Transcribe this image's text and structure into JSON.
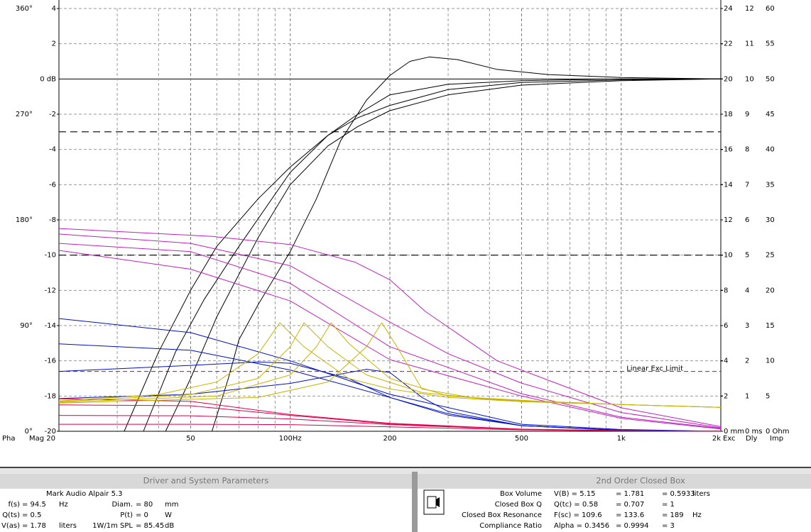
{
  "graph": {
    "xlim": [
      20,
      2000
    ],
    "log_x": true,
    "xticks": [
      {
        "value": 20,
        "label": "Mag 20"
      },
      50,
      {
        "value": 100,
        "label": "100Hz"
      },
      200,
      500,
      {
        "value": 1000,
        "label": "1k"
      },
      {
        "value": 2000,
        "label": "2k"
      }
    ],
    "minor_xticks": [
      30,
      40,
      60,
      70,
      80,
      90,
      300,
      400,
      600,
      700,
      800,
      900
    ],
    "ylim": [
      -20,
      4
    ],
    "yticks": [
      4,
      2,
      {
        "value": 0,
        "label": "0 dB"
      },
      -2,
      -4,
      -6,
      -8,
      -10,
      -12,
      -14,
      -16,
      -18,
      -20
    ],
    "grid": true,
    "phase_axis": {
      "label": "Pha",
      "color": "#c000c0",
      "lim": [
        0,
        360
      ],
      "ticks": [
        {
          "value": 360,
          "label": "360°"
        },
        {
          "value": 270,
          "label": "270°"
        },
        {
          "value": 180,
          "label": "180°"
        },
        {
          "value": 90,
          "label": "90°"
        },
        {
          "value": 0,
          "label": "0°"
        }
      ]
    },
    "exc_axis": {
      "label": "Exc",
      "color": "#c0007a",
      "lim": [
        0,
        24
      ],
      "ticks": [
        24,
        22,
        20,
        18,
        16,
        14,
        12,
        10,
        8,
        6,
        4,
        2,
        {
          "value": 0,
          "label": "0 mm"
        }
      ]
    },
    "delay_axis": {
      "label": "Dly",
      "color": "#0010c0",
      "lim": [
        0,
        12
      ],
      "ticks": [
        12,
        11,
        10,
        9,
        8,
        7,
        6,
        5,
        4,
        3,
        2,
        1,
        {
          "value": 0,
          "label": "0 ms"
        }
      ]
    },
    "imp_axis": {
      "label": "Imp",
      "color": "#b8a800",
      "lim": [
        0,
        60
      ],
      "ticks": [
        60,
        55,
        50,
        45,
        40,
        35,
        30,
        25,
        20,
        15,
        10,
        5,
        {
          "value": 0,
          "label": "0 Ohm"
        }
      ]
    },
    "reference_lines": [
      -3,
      -10
    ],
    "exc_limit": {
      "value": 3.4,
      "label": "Linear Exc Limit",
      "color": "#c0004a"
    },
    "series": [
      {
        "axis": "mag",
        "color": "#000000",
        "x": [
          58,
          65,
          70,
          80,
          100,
          120,
          142,
          170,
          200,
          230,
          263,
          320,
          420,
          600,
          1000,
          2000
        ],
        "values": [
          -20,
          -17,
          -14.8,
          -12.8,
          -9.8,
          -6.8,
          -3.5,
          -1.2,
          0.2,
          1,
          1.25,
          1.1,
          0.55,
          0.25,
          0.08,
          0
        ]
      },
      {
        "axis": "mag",
        "color": "#000000",
        "x": [
          31.5,
          40,
          50,
          60,
          80,
          100,
          130,
          160,
          200,
          300,
          500,
          1000,
          2000
        ],
        "values": [
          -20,
          -15.5,
          -12,
          -9.5,
          -6.8,
          -5,
          -3.2,
          -2,
          -0.9,
          -0.3,
          -0.1,
          0,
          0
        ]
      },
      {
        "axis": "mag",
        "color": "#000000",
        "x": [
          36,
          45,
          55,
          70,
          100,
          130,
          160,
          200,
          300,
          500,
          1000,
          2000
        ],
        "values": [
          -20,
          -15.5,
          -12.5,
          -9.5,
          -5.3,
          -3.2,
          -2.2,
          -1.5,
          -0.6,
          -0.2,
          -0.05,
          0
        ]
      },
      {
        "axis": "mag",
        "color": "#000000",
        "x": [
          42,
          50,
          60,
          80,
          100,
          130,
          160,
          200,
          300,
          500,
          1000,
          2000
        ],
        "values": [
          -20,
          -17,
          -13.5,
          -9,
          -6,
          -3.8,
          -2.7,
          -1.8,
          -0.9,
          -0.35,
          -0.1,
          0
        ]
      },
      {
        "axis": "phase",
        "color": "#c020c0",
        "x": [
          20,
          58,
          100,
          157,
          200,
          256,
          422,
          1000,
          2000
        ],
        "values": [
          172.7,
          166,
          159,
          144,
          129,
          102,
          60,
          20,
          4
        ]
      },
      {
        "axis": "phase",
        "color": "#c020c0",
        "x": [
          20,
          50,
          100,
          200,
          300,
          500,
          1000,
          2000
        ],
        "values": [
          168,
          160,
          141,
          93,
          66,
          41,
          16,
          3
        ]
      },
      {
        "axis": "phase",
        "color": "#c020c0",
        "x": [
          20,
          50,
          100,
          200,
          500,
          1000,
          2000
        ],
        "values": [
          160,
          153,
          126,
          72,
          32,
          12,
          2.5
        ]
      },
      {
        "axis": "phase",
        "color": "#c020c0",
        "x": [
          20,
          50,
          100,
          200,
          500,
          1000,
          2000
        ],
        "values": [
          154,
          138,
          111,
          61,
          30,
          11,
          2
        ]
      },
      {
        "axis": "delay",
        "color": "#0010c0",
        "x": [
          20,
          50,
          100,
          200,
          500,
          1000,
          2000
        ],
        "values": [
          3.2,
          2.8,
          2,
          1.05,
          0.2,
          0.05,
          0
        ]
      },
      {
        "axis": "delay",
        "color": "#0010c0",
        "x": [
          20,
          50,
          100,
          200,
          300,
          500,
          1000,
          2000
        ],
        "values": [
          2.48,
          2.3,
          1.74,
          0.96,
          0.46,
          0.16,
          0.03,
          0
        ]
      },
      {
        "axis": "delay",
        "color": "#0010c0",
        "x": [
          20,
          50,
          80,
          100,
          150,
          200,
          300,
          500,
          1000,
          2000
        ],
        "values": [
          1.7,
          1.87,
          1.97,
          1.93,
          1.5,
          0.96,
          0.5,
          0.16,
          0.02,
          0
        ]
      },
      {
        "axis": "delay",
        "color": "#0010c0",
        "x": [
          20,
          50,
          100,
          170,
          200,
          250,
          300,
          500,
          1000,
          2000
        ],
        "values": [
          0.93,
          1.05,
          1.36,
          1.76,
          1.67,
          0.96,
          0.56,
          0.16,
          0.03,
          0
        ]
      },
      {
        "axis": "exc",
        "color": "#e0004a",
        "x": [
          20,
          50,
          100,
          200,
          500,
          1000,
          2000
        ],
        "values": [
          1.85,
          1.7,
          0.95,
          0.45,
          0.12,
          0.04,
          0.01
        ]
      },
      {
        "axis": "exc",
        "color": "#e0004a",
        "x": [
          20,
          50,
          100,
          200,
          500,
          1000,
          2000
        ],
        "values": [
          1.5,
          1.45,
          0.9,
          0.42,
          0.11,
          0.03,
          0.01
        ]
      },
      {
        "axis": "exc",
        "color": "#e0004a",
        "x": [
          20,
          50,
          100,
          200,
          500,
          1000,
          2000
        ],
        "values": [
          0.9,
          0.88,
          0.7,
          0.38,
          0.1,
          0.03,
          0.01
        ]
      },
      {
        "axis": "exc",
        "color": "#e0004a",
        "x": [
          20,
          50,
          100,
          200,
          500,
          1000,
          2000
        ],
        "values": [
          0.4,
          0.4,
          0.38,
          0.25,
          0.08,
          0.02,
          0.01
        ]
      },
      {
        "axis": "imp",
        "color": "#c8b400",
        "x": [
          20,
          40,
          60,
          80,
          93,
          110,
          150,
          200,
          300,
          500,
          1000,
          2000
        ],
        "values": [
          4.3,
          5.2,
          7,
          11,
          15.4,
          12,
          7.5,
          6,
          4.8,
          4.2,
          3.8,
          3.4
        ]
      },
      {
        "axis": "imp",
        "color": "#c8b400",
        "x": [
          20,
          50,
          80,
          100,
          110,
          130,
          170,
          250,
          400,
          1000,
          2000
        ],
        "values": [
          4.2,
          5.2,
          7.5,
          12,
          15.4,
          12,
          8,
          5.5,
          4.5,
          3.8,
          3.4
        ]
      },
      {
        "axis": "imp",
        "color": "#c8b400",
        "x": [
          20,
          60,
          100,
          120,
          133,
          150,
          200,
          300,
          500,
          1000,
          2000
        ],
        "values": [
          4.1,
          5,
          8,
          12,
          15.4,
          12.5,
          7.5,
          5,
          4.3,
          3.8,
          3.4
        ]
      },
      {
        "axis": "imp",
        "color": "#c8b400",
        "x": [
          20,
          80,
          130,
          170,
          189,
          210,
          250,
          350,
          600,
          1000,
          2000
        ],
        "values": [
          4,
          4.8,
          7,
          12,
          15.4,
          12,
          6,
          4.8,
          4.2,
          3.8,
          3.4
        ]
      }
    ]
  },
  "driver_panel": {
    "title": "Driver and System Parameters",
    "driver": "Mark Audio  Alpair 5.3",
    "rows": [
      {
        "name": "f(s)",
        "value": "= 94.5",
        "unit": "Hz",
        "name2": "Diam.",
        "value2": "= 80",
        "unit2": "mm"
      },
      {
        "name": "Q(ts)",
        "value": "= 0.5",
        "name2": "P(t)",
        "value2": "= 0",
        "unit2": "W"
      },
      {
        "name": "V(as)",
        "value": "= 1.78",
        "unit": "liters",
        "name2": "1W/1m SPL",
        "value2": "= 85.45",
        "unit2": "dB"
      }
    ]
  },
  "box_panel": {
    "title": "2nd Order Closed Box",
    "rows": [
      {
        "label": "Box Volume",
        "v1": "V(B) = 5.15",
        "v2": "= 1.781",
        "v3": "= 0.5933",
        "unit": "liters"
      },
      {
        "label": "Closed Box Q",
        "v1": "Q(tc) = 0.58",
        "v2": "= 0.707",
        "v3": "= 1"
      },
      {
        "label": "Closed Box Resonance",
        "v1": "F(sc) = 109.6",
        "v2": "= 133.6",
        "v3": "= 189",
        "unit": "Hz"
      },
      {
        "label": "Compliance Ratio",
        "v1": "Alpha = 0.3456",
        "v2": "= 0.9994",
        "v3": "= 3"
      }
    ]
  }
}
